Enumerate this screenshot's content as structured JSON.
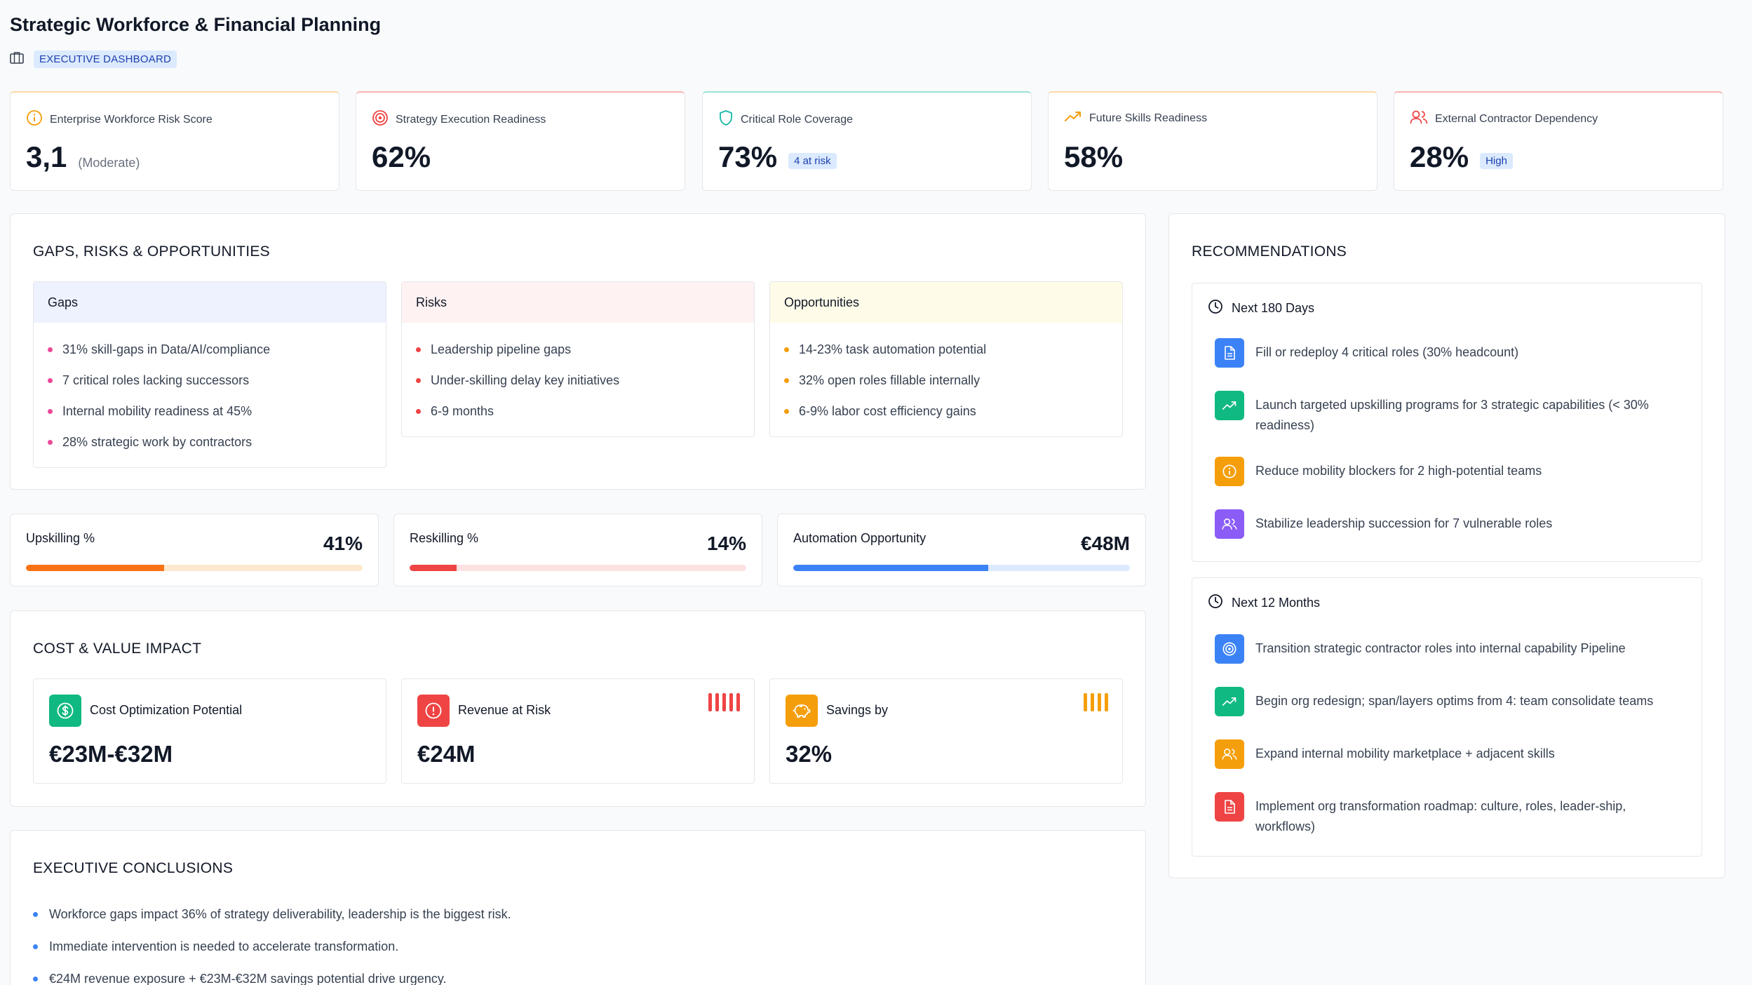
{
  "header": {
    "title": "Strategic Workforce & Financial Planning",
    "badge": "EXECUTIVE DASHBOARD"
  },
  "kpis": [
    {
      "label": "Enterprise Workforce Risk Score",
      "value": "3,1",
      "note": "(Moderate)",
      "icon": "info-circle-icon",
      "color": "#f59e0b"
    },
    {
      "label": "Strategy Execution Readiness",
      "value": "62%",
      "icon": "target-icon",
      "color": "#ef4444"
    },
    {
      "label": "Critical Role Coverage",
      "value": "73%",
      "tag": "4 at risk",
      "icon": "shield-icon",
      "color": "#14b8a6"
    },
    {
      "label": "Future Skills Readiness",
      "value": "58%",
      "icon": "trending-up-icon",
      "color": "#f59e0b"
    },
    {
      "label": "External Contractor Dependency",
      "value": "28%",
      "tag": "High",
      "icon": "users-icon",
      "color": "#ef4444"
    }
  ],
  "gro": {
    "title": "GAPS, RISKS & OPPORTUNITIES",
    "gaps": {
      "title": "Gaps",
      "items": [
        "31% skill-gaps in Data/AI/compliance",
        "7 critical roles lacking successors",
        "Internal mobility readiness at 45%",
        "28% strategic work by contractors"
      ],
      "color": "#ec4899",
      "bg": "#eef2ff"
    },
    "risks": {
      "title": "Risks",
      "items": [
        "Leadership pipeline gaps",
        "Under-skilling delay key initiatives",
        "6-9 months"
      ],
      "color": "#ef4444",
      "bg": "#fef2f2"
    },
    "opportunities": {
      "title": "Opportunities",
      "items": [
        "14-23% task automation potential",
        "32% open roles fillable internally",
        "6-9% labor cost efficiency gains"
      ],
      "color": "#f59e0b",
      "bg": "#fefce8"
    }
  },
  "progress": [
    {
      "label": "Upskilling %",
      "value": "41%",
      "fraction": 0.41,
      "color": "#f97316",
      "track": "#fde9cf"
    },
    {
      "label": "Reskilling %",
      "value": "14%",
      "fraction": 0.14,
      "color": "#ef4444",
      "track": "#fde2e2"
    },
    {
      "label": "Automation Opportunity",
      "value": "€48M",
      "fraction": 0.58,
      "color": "#3b82f6",
      "track": "#dbeafe"
    }
  ],
  "cost": {
    "title": "COST & VALUE IMPACT",
    "items": [
      {
        "label": "Cost Optimization Potential",
        "value": "€23M-€32M",
        "icon": "dollar-icon",
        "color": "#10b981"
      },
      {
        "label": "Revenue at Risk",
        "value": "€24M",
        "icon": "alert-circle-icon",
        "color": "#ef4444",
        "bars": 5
      },
      {
        "label": "Savings by",
        "value": "32%",
        "icon": "piggy-bank-icon",
        "color": "#f59e0b",
        "bars": 4
      }
    ]
  },
  "conclusions": {
    "title": "EXECUTIVE CONCLUSIONS",
    "items": [
      "Workforce gaps impact 36% of strategy deliverability, leadership is the biggest risk.",
      "Immediate intervention is needed to accelerate transformation.",
      "€24M revenue exposure + €23M-€32M savings potential drive urgency."
    ],
    "color": "#3b82f6"
  },
  "recommendations": {
    "title": "RECOMMENDATIONS",
    "groups": [
      {
        "title": "Next 180 Days",
        "items": [
          {
            "text": "Fill or redeploy 4 critical roles (30% headcount)",
            "icon": "document-icon",
            "color": "#3b82f6"
          },
          {
            "text": "Launch targeted upskilling programs for 3 strategic capabilities (< 30% readiness)",
            "icon": "trending-up-icon",
            "color": "#10b981"
          },
          {
            "text": "Reduce mobility blockers for 2 high-potential teams",
            "icon": "info-circle-icon",
            "color": "#f59e0b"
          },
          {
            "text": "Stabilize leadership succession for 7 vulnerable roles",
            "icon": "users-icon",
            "color": "#8b5cf6"
          }
        ]
      },
      {
        "title": "Next 12 Months",
        "items": [
          {
            "text": "Transition strategic contractor roles into internal capability Pipeline",
            "icon": "target-icon",
            "color": "#3b82f6"
          },
          {
            "text": "Begin org redesign; span/layers optims from 4: team consolidate teams",
            "icon": "trending-up-icon",
            "color": "#10b981"
          },
          {
            "text": "Expand internal mobility marketplace + adjacent skills",
            "icon": "users-icon",
            "color": "#f59e0b"
          },
          {
            "text": "Implement org transformation roadmap: culture, roles, leader-ship, workflows)",
            "icon": "document-icon",
            "color": "#ef4444"
          }
        ]
      }
    ]
  }
}
